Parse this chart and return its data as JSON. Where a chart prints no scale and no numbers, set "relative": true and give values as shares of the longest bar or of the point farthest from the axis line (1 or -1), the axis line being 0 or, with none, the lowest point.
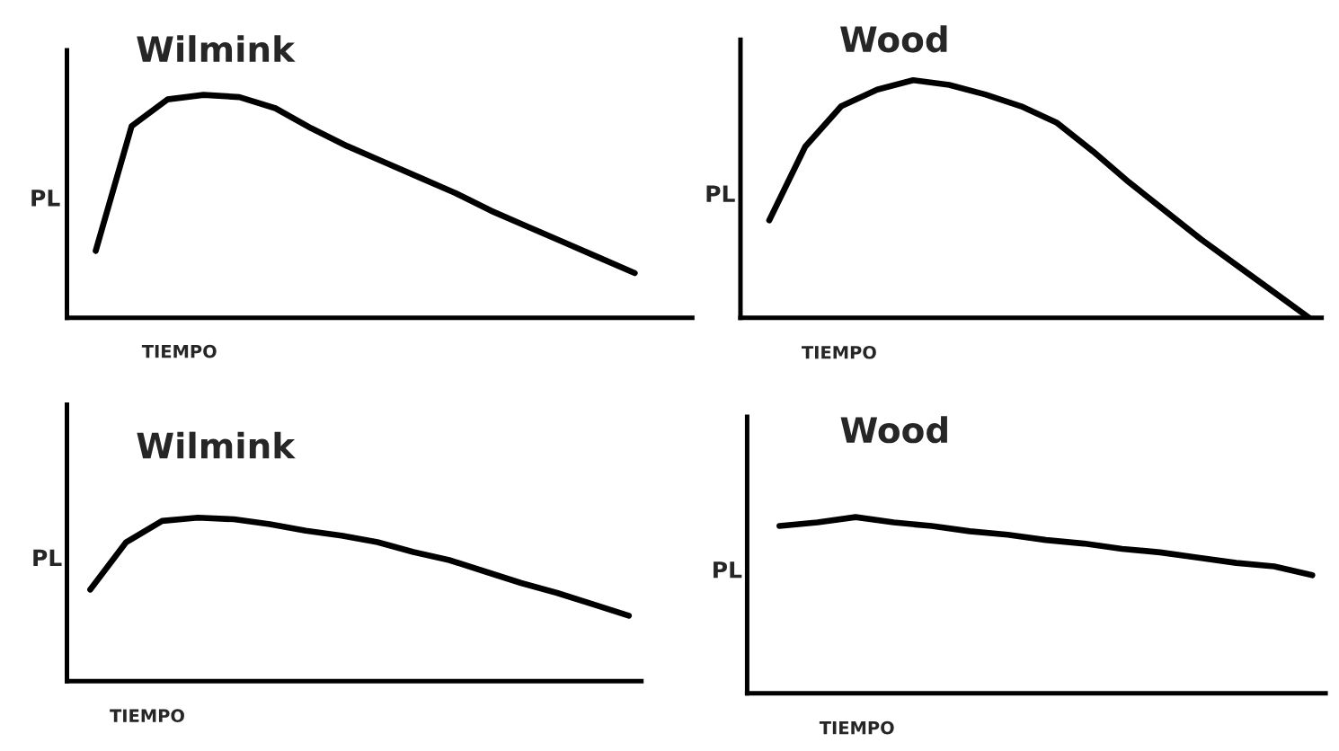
{
  "chart_data": [
    {
      "type": "line",
      "title": "Wilmink",
      "xlabel": "TIEMPO",
      "ylabel": "PL",
      "relative": true,
      "categories": [
        null,
        null,
        null,
        null,
        null,
        null,
        null,
        null,
        null,
        null,
        null,
        null,
        null,
        null,
        null,
        null
      ],
      "series": [
        {
          "color": "#000000",
          "values": [
            0.3,
            0.86,
            0.98,
            1,
            0.99,
            0.94,
            0.85,
            0.77,
            0.7,
            0.63,
            0.56,
            0.48,
            0.41,
            0.34,
            0.27,
            0.2
          ]
        }
      ]
    },
    {
      "type": "line",
      "title": "Wood",
      "xlabel": "TIEMPO",
      "ylabel": "PL",
      "relative": true,
      "categories": [
        null,
        null,
        null,
        null,
        null,
        null,
        null,
        null,
        null,
        null,
        null,
        null,
        null,
        null,
        null,
        null
      ],
      "series": [
        {
          "color": "#000000",
          "values": [
            0.41,
            0.72,
            0.89,
            0.96,
            1,
            0.98,
            0.94,
            0.89,
            0.82,
            0.7,
            0.57,
            0.45,
            0.33,
            0.22,
            0.11,
            0
          ]
        }
      ]
    },
    {
      "type": "line",
      "title": "Wilmink",
      "xlabel": "TIEMPO",
      "ylabel": "PL",
      "relative": true,
      "categories": [
        null,
        null,
        null,
        null,
        null,
        null,
        null,
        null,
        null,
        null,
        null,
        null,
        null,
        null,
        null,
        null
      ],
      "series": [
        {
          "color": "#000000",
          "values": [
            0.56,
            0.85,
            0.98,
            1,
            0.99,
            0.96,
            0.92,
            0.89,
            0.85,
            0.79,
            0.74,
            0.67,
            0.6,
            0.54,
            0.47,
            0.4
          ]
        }
      ]
    },
    {
      "type": "line",
      "title": "Wood",
      "xlabel": "TIEMPO",
      "ylabel": "PL",
      "relative": true,
      "categories": [
        null,
        null,
        null,
        null,
        null,
        null,
        null,
        null,
        null,
        null,
        null,
        null,
        null,
        null,
        null
      ],
      "series": [
        {
          "color": "#000000",
          "values": [
            0.95,
            0.97,
            1,
            0.97,
            0.95,
            0.92,
            0.9,
            0.87,
            0.85,
            0.82,
            0.8,
            0.77,
            0.74,
            0.72,
            0.67
          ]
        }
      ]
    }
  ]
}
